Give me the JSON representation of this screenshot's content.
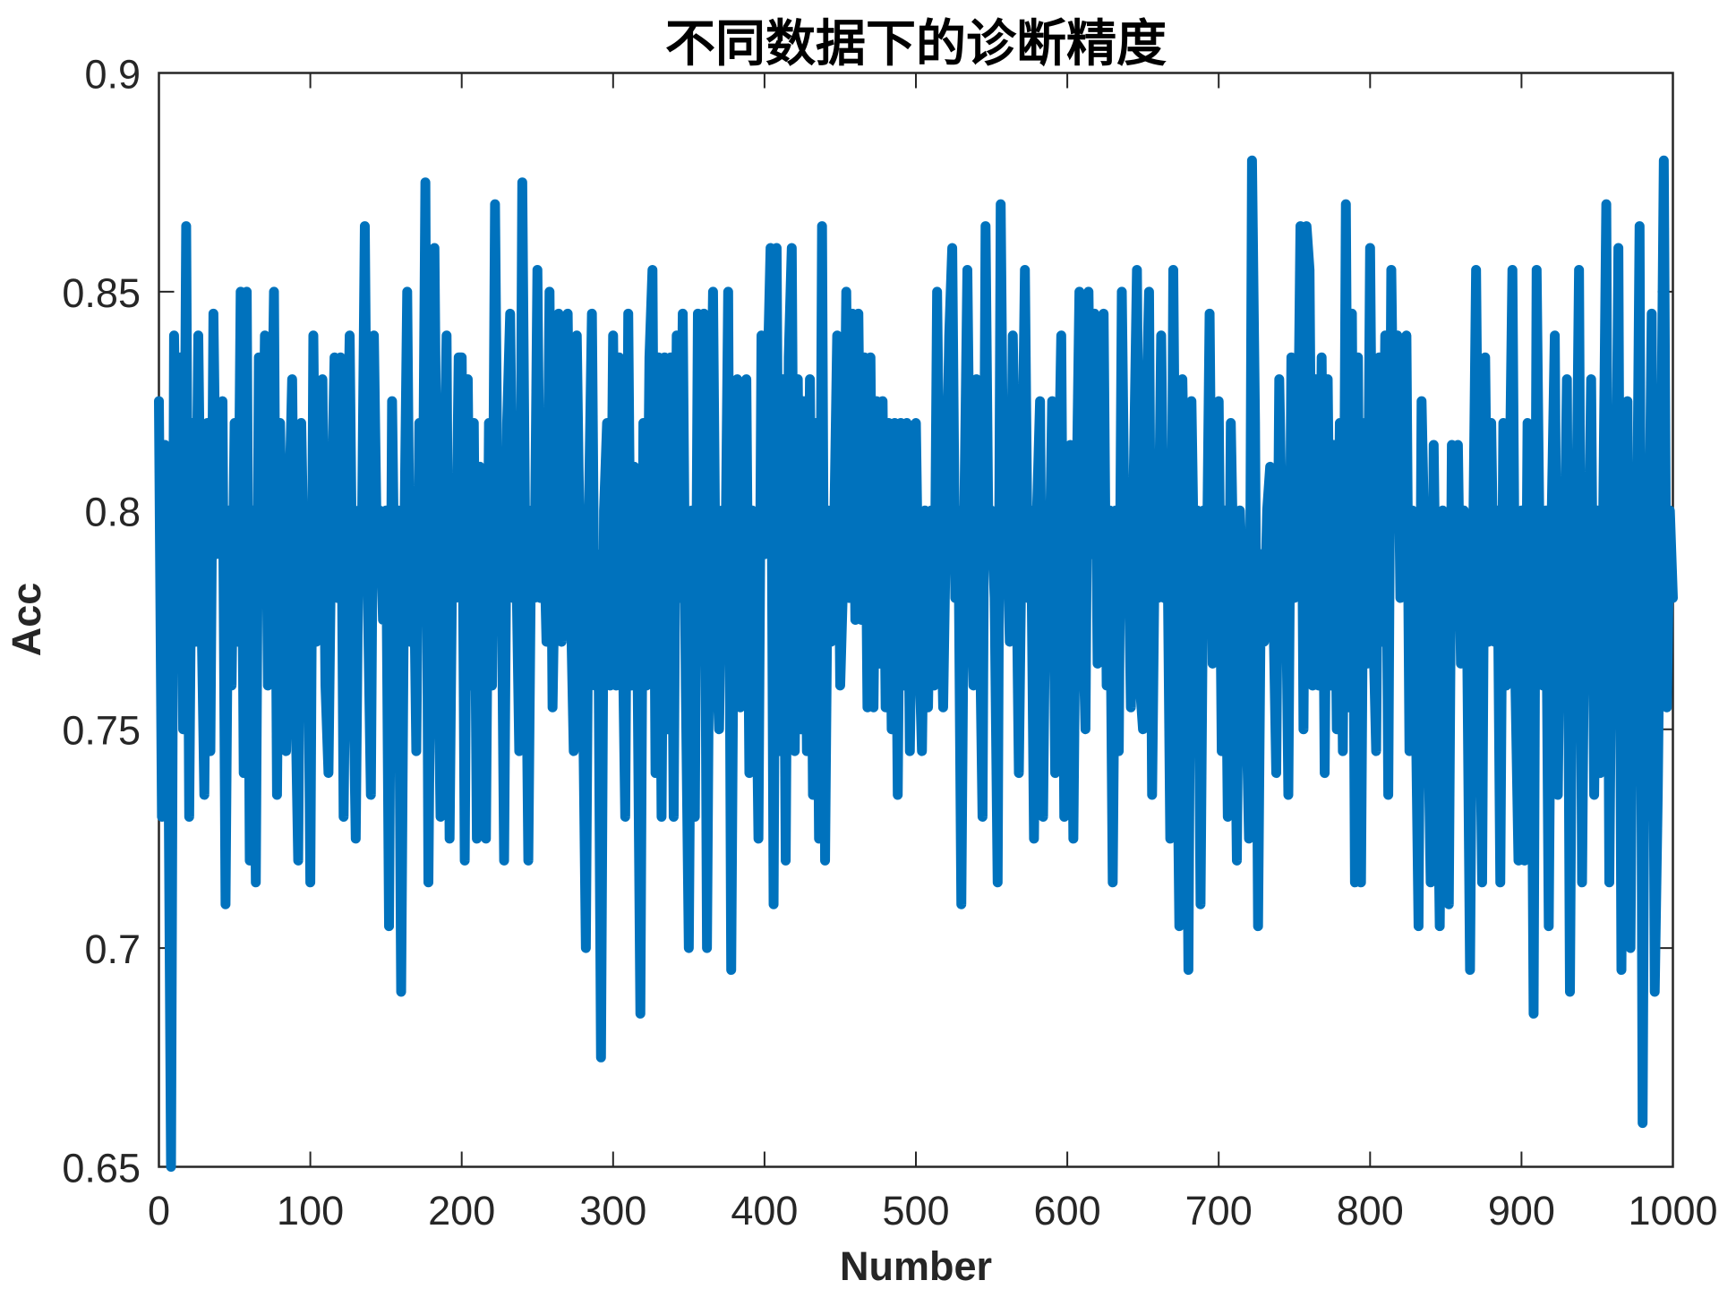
{
  "axes": {
    "xtick_labels": [
      "0",
      "100",
      "200",
      "300",
      "400",
      "500",
      "600",
      "700",
      "800",
      "900",
      "1000"
    ],
    "ytick_labels": [
      "0.65",
      "0.7",
      "0.75",
      "0.8",
      "0.85",
      "0.9"
    ]
  },
  "colors": {
    "line": "#0072BD",
    "axis": "#262626",
    "title": "#000000",
    "background": "#FFFFFF"
  },
  "chart_data": {
    "type": "line",
    "title": "不同数据下的诊断精度",
    "xlabel": "Number",
    "ylabel": "Acc",
    "xlim": [
      0,
      1000
    ],
    "ylim": [
      0.65,
      0.9
    ],
    "xticks": [
      0,
      100,
      200,
      300,
      400,
      500,
      600,
      700,
      800,
      900,
      1000
    ],
    "yticks": [
      0.65,
      0.7,
      0.75,
      0.8,
      0.85,
      0.9
    ],
    "grid": false,
    "legend": null,
    "box": true,
    "series": [
      {
        "color": "#0072BD",
        "x_start": 0,
        "x_step": 2,
        "values": [
          0.825,
          0.73,
          0.815,
          0.76,
          0.65,
          0.84,
          0.79,
          0.835,
          0.75,
          0.865,
          0.73,
          0.82,
          0.77,
          0.84,
          0.78,
          0.735,
          0.82,
          0.745,
          0.845,
          0.79,
          0.8,
          0.825,
          0.71,
          0.8,
          0.76,
          0.82,
          0.77,
          0.85,
          0.74,
          0.85,
          0.72,
          0.8,
          0.715,
          0.835,
          0.78,
          0.84,
          0.76,
          0.8,
          0.85,
          0.735,
          0.82,
          0.78,
          0.745,
          0.8,
          0.83,
          0.76,
          0.72,
          0.82,
          0.78,
          0.8,
          0.715,
          0.84,
          0.77,
          0.8,
          0.83,
          0.76,
          0.74,
          0.8,
          0.835,
          0.78,
          0.835,
          0.73,
          0.8,
          0.84,
          0.77,
          0.725,
          0.8,
          0.79,
          0.865,
          0.78,
          0.735,
          0.84,
          0.79,
          0.8,
          0.775,
          0.8,
          0.705,
          0.825,
          0.77,
          0.8,
          0.69,
          0.79,
          0.85,
          0.77,
          0.8,
          0.745,
          0.82,
          0.78,
          0.875,
          0.715,
          0.8,
          0.86,
          0.78,
          0.73,
          0.8,
          0.84,
          0.725,
          0.8,
          0.78,
          0.835,
          0.835,
          0.72,
          0.83,
          0.76,
          0.82,
          0.725,
          0.81,
          0.77,
          0.725,
          0.82,
          0.76,
          0.87,
          0.79,
          0.8,
          0.72,
          0.82,
          0.845,
          0.78,
          0.79,
          0.745,
          0.875,
          0.79,
          0.72,
          0.8,
          0.78,
          0.855,
          0.78,
          0.8,
          0.77,
          0.85,
          0.755,
          0.8,
          0.845,
          0.77,
          0.8,
          0.845,
          0.78,
          0.745,
          0.84,
          0.79,
          0.76,
          0.7,
          0.8,
          0.845,
          0.76,
          0.79,
          0.675,
          0.8,
          0.82,
          0.76,
          0.84,
          0.76,
          0.835,
          0.78,
          0.73,
          0.845,
          0.76,
          0.81,
          0.77,
          0.685,
          0.82,
          0.76,
          0.835,
          0.855,
          0.74,
          0.835,
          0.73,
          0.835,
          0.75,
          0.835,
          0.73,
          0.84,
          0.78,
          0.845,
          0.76,
          0.7,
          0.8,
          0.73,
          0.845,
          0.78,
          0.845,
          0.7,
          0.8,
          0.85,
          0.77,
          0.75,
          0.8,
          0.78,
          0.85,
          0.695,
          0.8,
          0.83,
          0.755,
          0.8,
          0.83,
          0.74,
          0.8,
          0.78,
          0.725,
          0.84,
          0.79,
          0.83,
          0.86,
          0.71,
          0.86,
          0.745,
          0.83,
          0.72,
          0.835,
          0.86,
          0.745,
          0.83,
          0.75,
          0.825,
          0.745,
          0.83,
          0.735,
          0.82,
          0.725,
          0.865,
          0.72,
          0.8,
          0.77,
          0.795,
          0.84,
          0.76,
          0.785,
          0.85,
          0.78,
          0.845,
          0.775,
          0.845,
          0.775,
          0.835,
          0.755,
          0.835,
          0.755,
          0.825,
          0.765,
          0.825,
          0.755,
          0.82,
          0.75,
          0.82,
          0.735,
          0.82,
          0.76,
          0.82,
          0.745,
          0.8,
          0.82,
          0.77,
          0.745,
          0.8,
          0.755,
          0.8,
          0.76,
          0.85,
          0.79,
          0.755,
          0.8,
          0.84,
          0.86,
          0.78,
          0.8,
          0.71,
          0.8,
          0.855,
          0.79,
          0.76,
          0.83,
          0.78,
          0.73,
          0.865,
          0.79,
          0.8,
          0.78,
          0.715,
          0.87,
          0.79,
          0.8,
          0.77,
          0.84,
          0.8,
          0.74,
          0.8,
          0.855,
          0.78,
          0.8,
          0.725,
          0.8,
          0.825,
          0.73,
          0.8,
          0.78,
          0.825,
          0.74,
          0.8,
          0.84,
          0.73,
          0.8,
          0.815,
          0.725,
          0.8,
          0.85,
          0.78,
          0.75,
          0.85,
          0.79,
          0.845,
          0.765,
          0.83,
          0.845,
          0.76,
          0.8,
          0.715,
          0.8,
          0.745,
          0.85,
          0.79,
          0.8,
          0.755,
          0.81,
          0.855,
          0.76,
          0.75,
          0.82,
          0.85,
          0.735,
          0.8,
          0.78,
          0.84,
          0.78,
          0.8,
          0.725,
          0.855,
          0.77,
          0.705,
          0.83,
          0.79,
          0.695,
          0.825,
          0.78,
          0.8,
          0.71,
          0.8,
          0.78,
          0.845,
          0.765,
          0.8,
          0.825,
          0.745,
          0.8,
          0.73,
          0.82,
          0.78,
          0.72,
          0.8,
          0.78,
          0.76,
          0.725,
          0.88,
          0.82,
          0.705,
          0.79,
          0.77,
          0.8,
          0.81,
          0.78,
          0.74,
          0.83,
          0.79,
          0.8,
          0.735,
          0.835,
          0.78,
          0.8,
          0.865,
          0.75,
          0.865,
          0.855,
          0.76,
          0.83,
          0.76,
          0.835,
          0.74,
          0.83,
          0.76,
          0.815,
          0.75,
          0.82,
          0.745,
          0.87,
          0.755,
          0.845,
          0.715,
          0.835,
          0.715,
          0.82,
          0.765,
          0.86,
          0.775,
          0.745,
          0.835,
          0.77,
          0.84,
          0.735,
          0.855,
          0.8,
          0.84,
          0.78,
          0.825,
          0.84,
          0.745,
          0.8,
          0.76,
          0.705,
          0.825,
          0.79,
          0.76,
          0.715,
          0.815,
          0.76,
          0.705,
          0.8,
          0.775,
          0.71,
          0.815,
          0.78,
          0.815,
          0.765,
          0.8,
          0.775,
          0.695,
          0.79,
          0.855,
          0.775,
          0.715,
          0.835,
          0.77,
          0.82,
          0.77,
          0.8,
          0.715,
          0.82,
          0.76,
          0.8,
          0.855,
          0.76,
          0.72,
          0.8,
          0.72,
          0.82,
          0.8,
          0.685,
          0.855,
          0.79,
          0.76,
          0.8,
          0.705,
          0.8,
          0.84,
          0.735,
          0.8,
          0.78,
          0.83,
          0.69,
          0.8,
          0.79,
          0.855,
          0.715,
          0.8,
          0.78,
          0.83,
          0.735,
          0.8,
          0.74,
          0.8,
          0.87,
          0.715,
          0.8,
          0.78,
          0.86,
          0.695,
          0.8,
          0.825,
          0.7,
          0.8,
          0.78,
          0.865,
          0.66,
          0.8,
          0.78,
          0.845,
          0.69,
          0.735,
          0.8,
          0.88,
          0.755,
          0.8,
          0.78
        ]
      }
    ]
  }
}
